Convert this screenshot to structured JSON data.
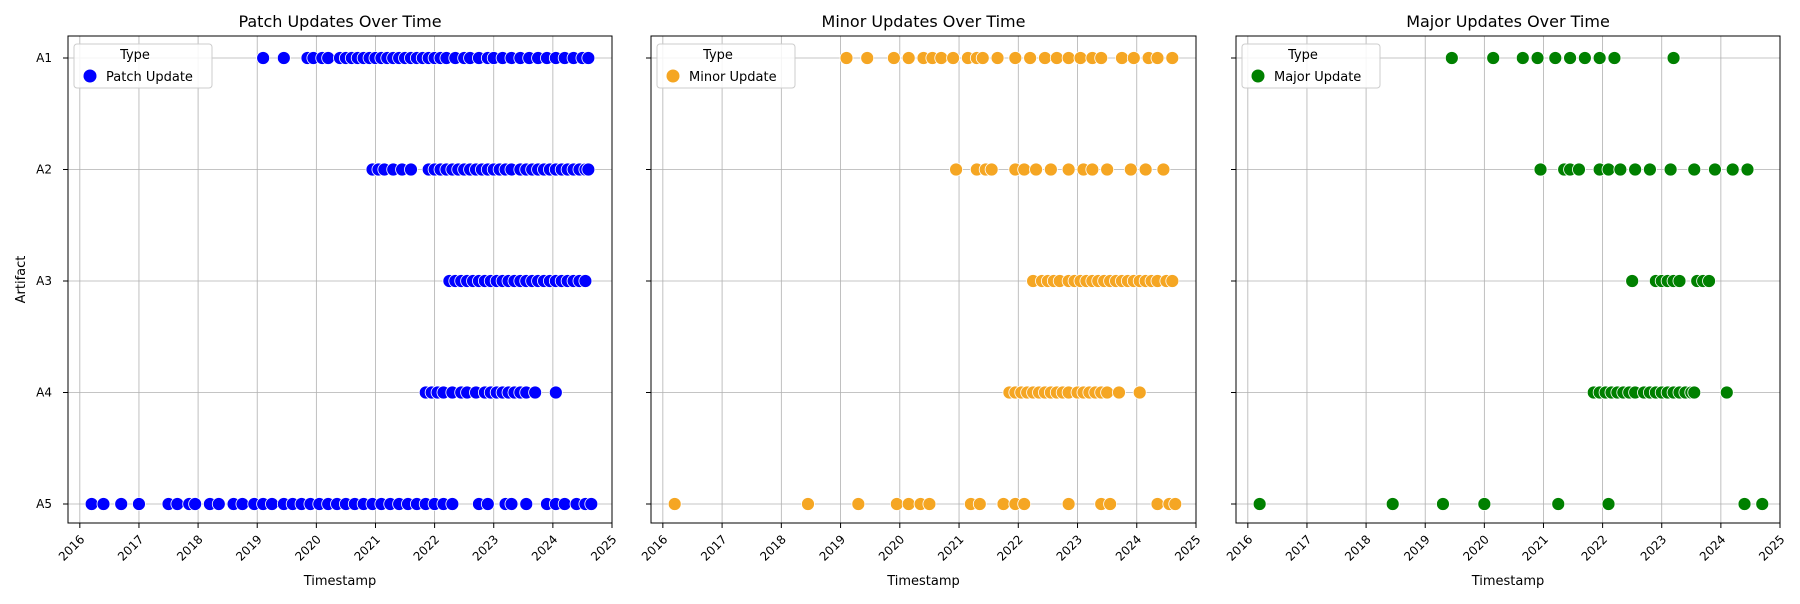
{
  "chart_data": [
    {
      "type": "scatter",
      "title": "Patch Updates Over Time",
      "xlabel": "Timestamp",
      "ylabel": "Artifact",
      "categories": [
        "A1",
        "A2",
        "A3",
        "A4",
        "A5"
      ],
      "x_ticks": [
        "2016",
        "2017",
        "2018",
        "2019",
        "2020",
        "2021",
        "2022",
        "2023",
        "2024",
        "2025"
      ],
      "xlim": [
        2015.8,
        2025.0
      ],
      "grid": true,
      "legend": {
        "title": "Type",
        "label": "Patch Update",
        "placement": "top-left"
      },
      "color": "#0000ff",
      "series": [
        {
          "category": "A1",
          "x": [
            2019.1,
            2019.45,
            2019.85,
            2019.95,
            2020.1,
            2020.2,
            2020.4,
            2020.5,
            2020.6,
            2020.7,
            2020.8,
            2020.9,
            2021.0,
            2021.1,
            2021.2,
            2021.3,
            2021.4,
            2021.5,
            2021.6,
            2021.7,
            2021.8,
            2021.9,
            2022.0,
            2022.1,
            2022.2,
            2022.35,
            2022.5,
            2022.6,
            2022.75,
            2022.9,
            2023.0,
            2023.15,
            2023.3,
            2023.45,
            2023.6,
            2023.75,
            2023.9,
            2024.05,
            2024.2,
            2024.35,
            2024.5,
            2024.6
          ]
        },
        {
          "category": "A2",
          "x": [
            2020.95,
            2021.05,
            2021.15,
            2021.3,
            2021.45,
            2021.6,
            2021.9,
            2022.0,
            2022.1,
            2022.2,
            2022.3,
            2022.4,
            2022.5,
            2022.6,
            2022.7,
            2022.8,
            2022.9,
            2023.0,
            2023.1,
            2023.2,
            2023.3,
            2023.45,
            2023.55,
            2023.65,
            2023.75,
            2023.85,
            2023.95,
            2024.05,
            2024.15,
            2024.25,
            2024.35,
            2024.45,
            2024.55,
            2024.6
          ]
        },
        {
          "category": "A3",
          "x": [
            2022.25,
            2022.35,
            2022.45,
            2022.55,
            2022.65,
            2022.75,
            2022.85,
            2022.95,
            2023.05,
            2023.15,
            2023.25,
            2023.35,
            2023.45,
            2023.55,
            2023.65,
            2023.75,
            2023.85,
            2023.95,
            2024.05,
            2024.15,
            2024.25,
            2024.35,
            2024.45,
            2024.55
          ]
        },
        {
          "category": "A4",
          "x": [
            2021.85,
            2021.95,
            2022.05,
            2022.15,
            2022.3,
            2022.45,
            2022.55,
            2022.7,
            2022.85,
            2022.95,
            2023.05,
            2023.15,
            2023.25,
            2023.35,
            2023.45,
            2023.55,
            2023.7,
            2024.05
          ]
        },
        {
          "category": "A5",
          "x": [
            2016.2,
            2016.4,
            2016.7,
            2017.0,
            2017.5,
            2017.65,
            2017.85,
            2017.95,
            2018.2,
            2018.35,
            2018.6,
            2018.75,
            2018.95,
            2019.1,
            2019.25,
            2019.45,
            2019.6,
            2019.75,
            2019.9,
            2020.05,
            2020.2,
            2020.35,
            2020.5,
            2020.65,
            2020.8,
            2020.95,
            2021.1,
            2021.25,
            2021.4,
            2021.55,
            2021.7,
            2021.85,
            2022.0,
            2022.15,
            2022.3,
            2022.75,
            2022.9,
            2023.2,
            2023.3,
            2023.55,
            2023.9,
            2024.05,
            2024.2,
            2024.4,
            2024.55,
            2024.65
          ]
        }
      ]
    },
    {
      "type": "scatter",
      "title": "Minor Updates Over Time",
      "xlabel": "Timestamp",
      "ylabel": "",
      "categories": [
        "A1",
        "A2",
        "A3",
        "A4",
        "A5"
      ],
      "x_ticks": [
        "2016",
        "2017",
        "2018",
        "2019",
        "2020",
        "2021",
        "2022",
        "2023",
        "2024",
        "2025"
      ],
      "xlim": [
        2015.8,
        2025.0
      ],
      "grid": true,
      "legend": {
        "title": "Type",
        "label": "Minor Update",
        "placement": "top-left"
      },
      "color": "#f5a623",
      "series": [
        {
          "category": "A1",
          "x": [
            2019.1,
            2019.45,
            2019.9,
            2020.15,
            2020.4,
            2020.55,
            2020.7,
            2020.9,
            2021.15,
            2021.3,
            2021.4,
            2021.65,
            2021.95,
            2022.2,
            2022.45,
            2022.65,
            2022.85,
            2023.05,
            2023.25,
            2023.4,
            2023.75,
            2023.95,
            2024.2,
            2024.35,
            2024.6
          ]
        },
        {
          "category": "A2",
          "x": [
            2020.95,
            2021.3,
            2021.45,
            2021.55,
            2021.95,
            2022.1,
            2022.3,
            2022.55,
            2022.85,
            2023.1,
            2023.25,
            2023.5,
            2023.9,
            2024.15,
            2024.45
          ]
        },
        {
          "category": "A3",
          "x": [
            2022.25,
            2022.4,
            2022.5,
            2022.6,
            2022.7,
            2022.85,
            2022.95,
            2023.05,
            2023.15,
            2023.25,
            2023.35,
            2023.45,
            2023.55,
            2023.65,
            2023.75,
            2023.85,
            2023.95,
            2024.05,
            2024.15,
            2024.25,
            2024.35,
            2024.5,
            2024.6
          ]
        },
        {
          "category": "A4",
          "x": [
            2021.85,
            2021.95,
            2022.05,
            2022.15,
            2022.25,
            2022.35,
            2022.45,
            2022.55,
            2022.65,
            2022.75,
            2022.85,
            2023.0,
            2023.1,
            2023.2,
            2023.3,
            2023.4,
            2023.5,
            2023.7,
            2024.05
          ]
        },
        {
          "category": "A5",
          "x": [
            2016.2,
            2018.45,
            2019.3,
            2019.95,
            2020.15,
            2020.35,
            2020.5,
            2021.2,
            2021.35,
            2021.75,
            2021.95,
            2022.1,
            2022.85,
            2023.4,
            2023.55,
            2024.35,
            2024.55,
            2024.65
          ]
        }
      ]
    },
    {
      "type": "scatter",
      "title": "Major Updates Over Time",
      "xlabel": "Timestamp",
      "ylabel": "",
      "categories": [
        "A1",
        "A2",
        "A3",
        "A4",
        "A5"
      ],
      "x_ticks": [
        "2016",
        "2017",
        "2018",
        "2019",
        "2020",
        "2021",
        "2022",
        "2023",
        "2024",
        "2025"
      ],
      "xlim": [
        2015.8,
        2025.0
      ],
      "grid": true,
      "legend": {
        "title": "Type",
        "label": "Major Update",
        "placement": "top-left"
      },
      "color": "#008000",
      "series": [
        {
          "category": "A1",
          "x": [
            2019.45,
            2020.15,
            2020.65,
            2020.9,
            2021.2,
            2021.45,
            2021.7,
            2021.95,
            2022.2,
            2023.2
          ]
        },
        {
          "category": "A2",
          "x": [
            2020.95,
            2021.35,
            2021.45,
            2021.6,
            2021.95,
            2022.1,
            2022.3,
            2022.55,
            2022.8,
            2023.15,
            2023.55,
            2023.9,
            2024.2,
            2024.45
          ]
        },
        {
          "category": "A3",
          "x": [
            2022.5,
            2022.9,
            2023.0,
            2023.1,
            2023.2,
            2023.3,
            2023.6,
            2023.7,
            2023.8
          ]
        },
        {
          "category": "A4",
          "x": [
            2021.85,
            2021.95,
            2022.05,
            2022.15,
            2022.25,
            2022.35,
            2022.45,
            2022.55,
            2022.7,
            2022.8,
            2022.9,
            2023.0,
            2023.1,
            2023.2,
            2023.3,
            2023.4,
            2023.5,
            2023.55,
            2024.1
          ]
        },
        {
          "category": "A5",
          "x": [
            2016.2,
            2018.45,
            2019.3,
            2020.0,
            2021.25,
            2022.1,
            2024.4,
            2024.7
          ]
        }
      ]
    }
  ]
}
